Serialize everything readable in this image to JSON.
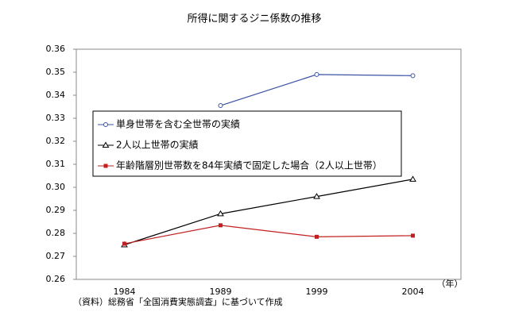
{
  "chart_data": {
    "type": "line",
    "title": "所得に関するジニ係数の推移",
    "categories": [
      "1984",
      "1989",
      "1999",
      "2004"
    ],
    "x_unit": "（年）",
    "source": "（資料）総務省「全国消費実態調査」に基づいて作成",
    "ylim": [
      0.26,
      0.36
    ],
    "yticks": [
      0.26,
      0.27,
      0.28,
      0.29,
      {
        "value": 0.3,
        "label": "0.30"
      },
      0.31,
      0.32,
      0.33,
      0.34,
      0.35,
      0.36
    ],
    "grid": false,
    "legend": "upper-left",
    "series": [
      {
        "name": "単身世帯を含む全世帯の実績",
        "color": "#3a53a4",
        "marker": "circle",
        "values": [
          null,
          0.3355,
          0.349,
          0.3485
        ]
      },
      {
        "name": "2人以上世帯の実績",
        "color": "#000000",
        "marker": "triangle",
        "values": [
          0.275,
          0.2885,
          0.296,
          0.3035
        ]
      },
      {
        "name": "年齢階層別世帯数を84年実績で固定した場合（2人以上世帯）",
        "color": "#c0201f",
        "marker": "square",
        "values": [
          0.2755,
          0.2835,
          0.2785,
          0.279
        ]
      }
    ]
  }
}
